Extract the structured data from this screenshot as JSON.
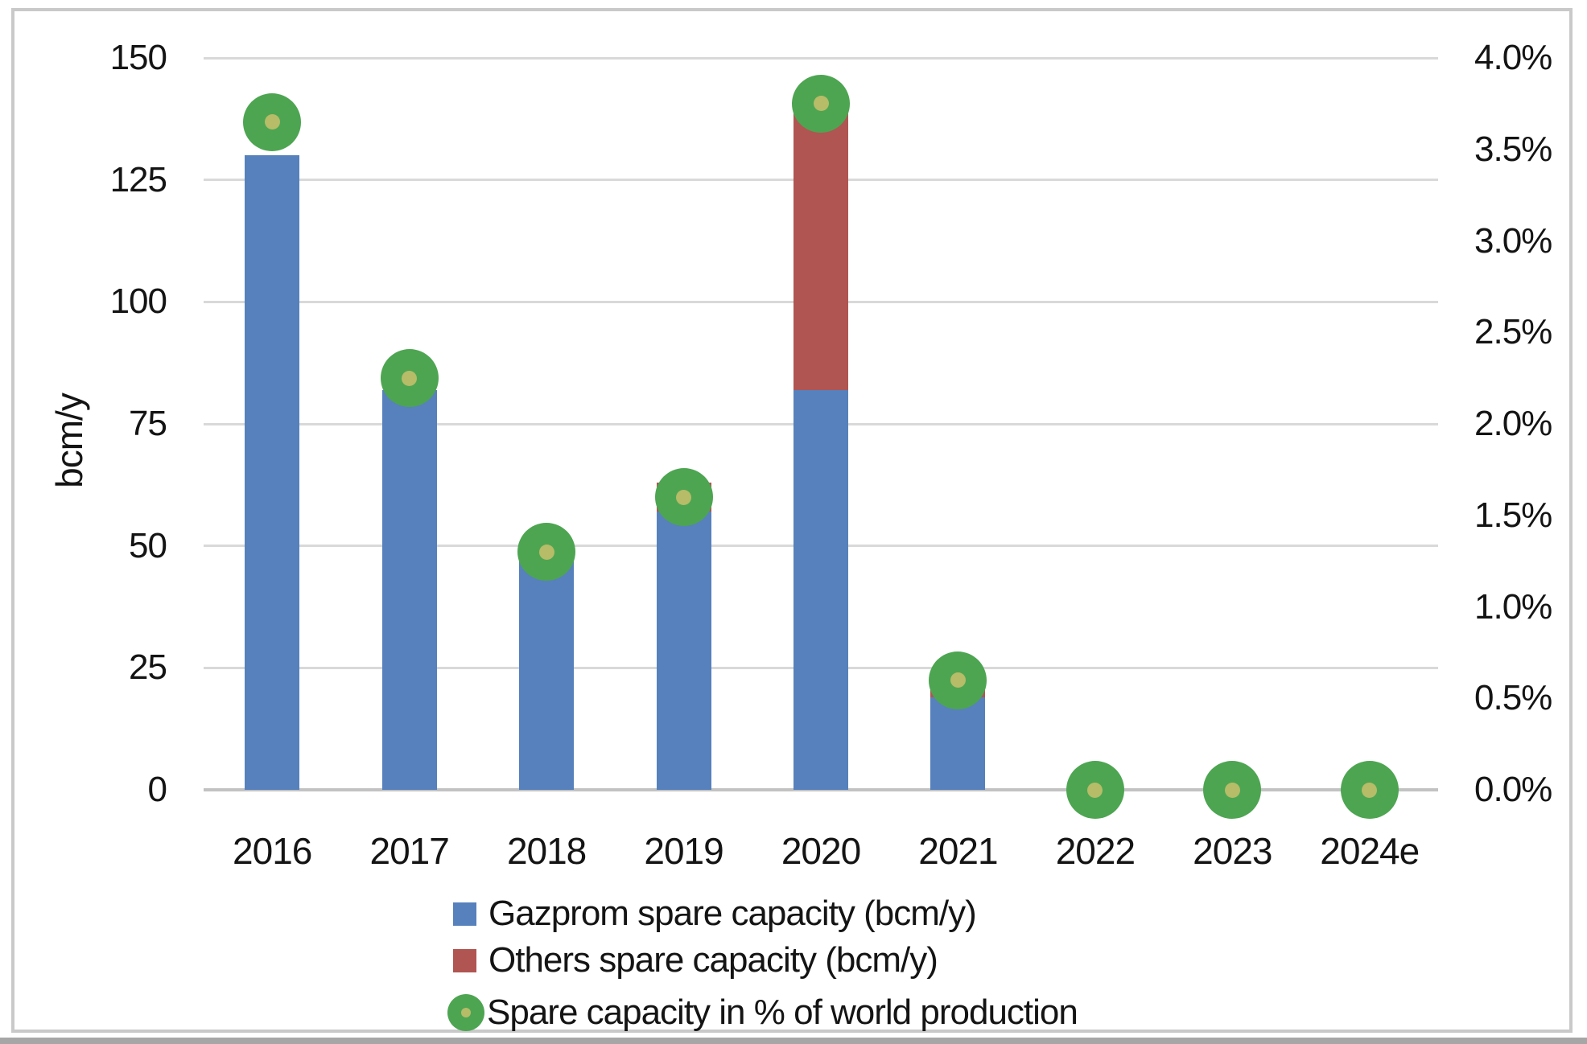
{
  "chart": {
    "y_left": {
      "title": "bcm/y",
      "ticks": [
        "150",
        "125",
        "100",
        "75",
        "50",
        "25",
        "0"
      ],
      "min": 0,
      "max": 150,
      "step": 25
    },
    "y_right": {
      "ticks": [
        "4.0%",
        "3.5%",
        "3.0%",
        "2.5%",
        "2.0%",
        "1.5%",
        "1.0%",
        "0.5%",
        "0.0%"
      ],
      "min": 0,
      "max": 4.0
    },
    "legend": [
      {
        "label": "Gazprom spare capacity (bcm/y)",
        "marker": "square",
        "color": "#5681bc"
      },
      {
        "label": "Others spare capacity (bcm/y)",
        "marker": "square",
        "color": "#b05551"
      },
      {
        "label": "Spare capacity in % of world production",
        "marker": "circle",
        "color": "#4da551"
      }
    ]
  },
  "chart_data": {
    "type": "bar",
    "title": "",
    "categories": [
      "2016",
      "2017",
      "2018",
      "2019",
      "2020",
      "2021",
      "2022",
      "2023",
      "2024e"
    ],
    "series": [
      {
        "name": "Gazprom spare capacity (bcm/y)",
        "type": "bar",
        "stacked": true,
        "axis": "left",
        "color": "#5681bc",
        "values": [
          130,
          82,
          49,
          57,
          82,
          19,
          0,
          0,
          0
        ]
      },
      {
        "name": "Others spare capacity (bcm/y)",
        "type": "bar",
        "stacked": true,
        "axis": "left",
        "color": "#b05551",
        "values": [
          0,
          0,
          0,
          6,
          58,
          2,
          0,
          0,
          0
        ]
      },
      {
        "name": "Spare capacity in % of world production",
        "type": "scatter",
        "axis": "right",
        "color": "#4da551",
        "marker_inner_color": "#b6bc68",
        "values": [
          3.65,
          2.25,
          1.3,
          1.6,
          3.75,
          0.6,
          0.0,
          0.0,
          0.0
        ]
      }
    ],
    "ylabel": "bcm/y",
    "ylabel_right": "",
    "ylim_left": [
      0,
      150
    ],
    "ylim_right": [
      0,
      4.0
    ],
    "grid": true,
    "legend_position": "bottom-left"
  },
  "colors": {
    "gazprom_bar": "#5681bc",
    "others_bar": "#b05551",
    "pct_marker": "#4da551",
    "pct_marker_inner": "#b6bc68",
    "gridline": "#d9d9d9",
    "axis_line": "#c2c2c2",
    "chart_border": "#c9c9c9",
    "bottom_strip": "#a6a6a6",
    "text": "#141414"
  }
}
